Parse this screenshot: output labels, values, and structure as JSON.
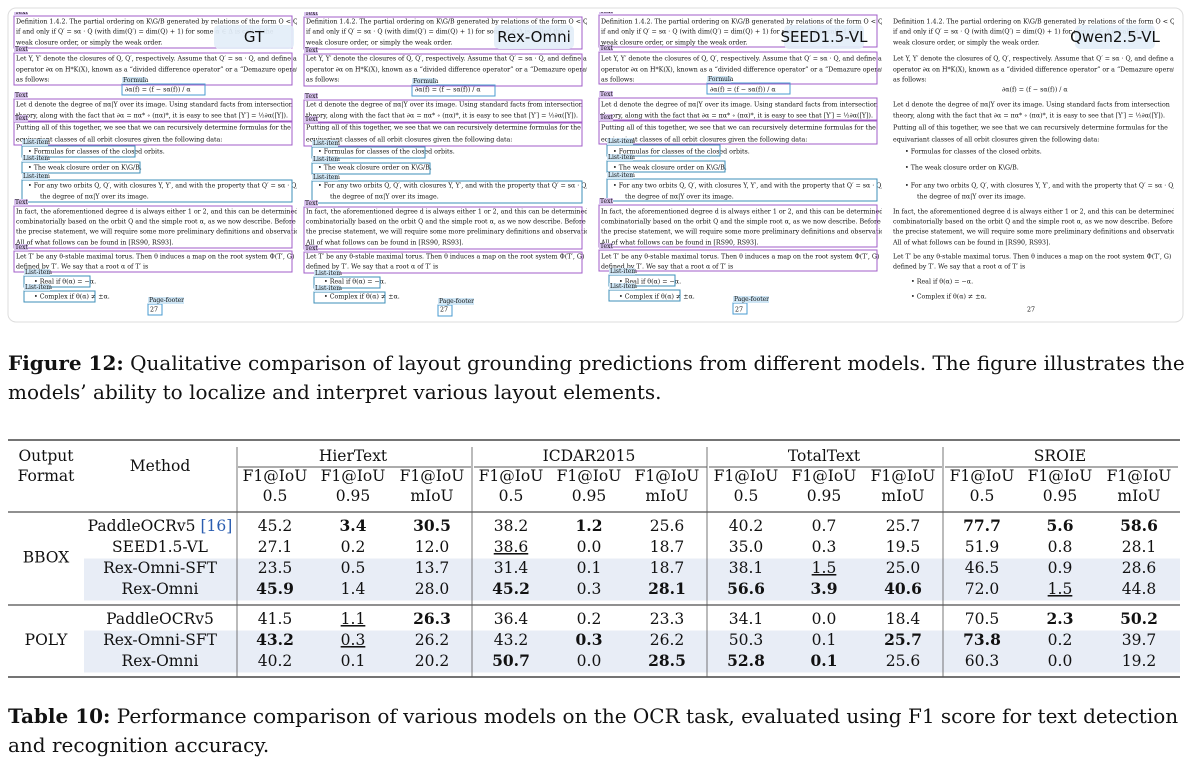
{
  "figure": {
    "panels": [
      "GT",
      "Rex-Omni",
      "SEED1.5-VL",
      "Qwen2.5-VL"
    ],
    "box_labels": [
      "Text",
      "Formula",
      "List-item",
      "Page-footer"
    ],
    "document_lines": [
      "Definition 1.4.2. The partial ordering on K\\G/B generated by relations of the form O < Q′",
      "if and only if Q′ = sα · Q (with dim(Q′) = dim(Q) + 1) for some α ∈ Δ is called the",
      "weak closure order, or simply the weak order.",
      "Let Y, Y′ denote the closures of Q, Q′, respectively. Assume that Q′ = sα · Q, and define an",
      "operator ∂α on H*K(X), known as a “divided difference operator” or a “Demazure operator”",
      "as follows:",
      "∂α(f) = (f − sα(f)) / α",
      "Let d denote the degree of πα|Y over its image. Using standard facts from intersection",
      "theory, along with the fact that ∂α = πα* ∘ (πα)*, it is easy to see that [Y′] = ½∂α([Y]).",
      "Putting all of this together, we see that we can recursively determine formulas for the",
      "equivariant classes of all orbit closures given the following data:",
      "• Formulas for classes of the closed orbits.",
      "• The weak closure order on K\\G/B.",
      "• For any two orbits Q, Q′, with closures Y, Y′, and with the property that Q′ = sα · Q,",
      "the degree of πα|Y over its image.",
      "In fact, the aforementioned degree d is always either 1 or 2, and this can be determined",
      "combinatorially based on the orbit Q and the simple root α, as we now describe. Before giving",
      "the precise statement, we will require some more preliminary definitions and observations.",
      "All of what follows can be found in [RS90, RS93].",
      "Let T′ be any θ-stable maximal torus. Then θ induces a map on the root system Φ(T′, G)",
      "defined by T′. We say that a root α of T′ is",
      "• Real if θ(α) = −α.",
      "• Complex if θ(α) ≠ ±α.",
      "27"
    ],
    "caption_label": "Figure 12:",
    "caption_text": " Qualitative comparison of layout grounding predictions from different models. The figure illustrates the models’ ability to localize and interpret various layout elements."
  },
  "table": {
    "output_format": [
      "Output",
      "Format"
    ],
    "method": "Method",
    "groups": [
      "HierText",
      "ICDAR2015",
      "TotalText",
      "SROIE"
    ],
    "metrics": [
      [
        "F1@IoU",
        "0.5"
      ],
      [
        "F1@IoU",
        "0.95"
      ],
      [
        "F1@IoU",
        "mIoU"
      ]
    ],
    "sections": [
      {
        "format": "BBOX",
        "rows": [
          {
            "method": "PaddleOCRv5",
            "cite": "[16]",
            "values": [
              "45.2",
              "3.4",
              "30.5",
              "38.2",
              "1.2",
              "25.6",
              "40.2",
              "0.7",
              "25.7",
              "77.7",
              "5.6",
              "58.6"
            ],
            "bold": [
              1,
              2,
              4,
              9,
              10,
              11
            ],
            "underline": []
          },
          {
            "method": "SEED1.5-VL",
            "values": [
              "27.1",
              "0.2",
              "12.0",
              "38.6",
              "0.0",
              "18.7",
              "35.0",
              "0.3",
              "19.5",
              "51.9",
              "0.8",
              "28.1"
            ],
            "bold": [],
            "underline": [
              3
            ]
          },
          {
            "method": "Rex-Omni-SFT",
            "values": [
              "23.5",
              "0.5",
              "13.7",
              "31.4",
              "0.1",
              "18.7",
              "38.1",
              "1.5",
              "25.0",
              "46.5",
              "0.9",
              "28.6"
            ],
            "bold": [],
            "underline": [
              7
            ],
            "shaded": true
          },
          {
            "method": "Rex-Omni",
            "values": [
              "45.9",
              "1.4",
              "28.0",
              "45.2",
              "0.3",
              "28.1",
              "56.6",
              "3.9",
              "40.6",
              "72.0",
              "1.5",
              "44.8"
            ],
            "bold": [
              0,
              3,
              5,
              6,
              7,
              8
            ],
            "underline": [
              10
            ],
            "shaded": true
          }
        ]
      },
      {
        "format": "POLY",
        "rows": [
          {
            "method": "PaddleOCRv5",
            "values": [
              "41.5",
              "1.1",
              "26.3",
              "36.4",
              "0.2",
              "23.3",
              "34.1",
              "0.0",
              "18.4",
              "70.5",
              "2.3",
              "50.2"
            ],
            "bold": [
              2,
              10,
              11
            ],
            "underline": [
              1
            ]
          },
          {
            "method": "Rex-Omni-SFT",
            "values": [
              "43.2",
              "0.3",
              "26.2",
              "43.2",
              "0.3",
              "26.2",
              "50.3",
              "0.1",
              "25.7",
              "73.8",
              "0.2",
              "39.7"
            ],
            "bold": [
              0,
              4,
              8,
              9
            ],
            "underline": [
              1
            ],
            "shaded": true
          },
          {
            "method": "Rex-Omni",
            "values": [
              "40.2",
              "0.1",
              "20.2",
              "50.7",
              "0.0",
              "28.5",
              "52.8",
              "0.1",
              "25.6",
              "60.3",
              "0.0",
              "19.2"
            ],
            "bold": [
              3,
              5,
              6,
              7
            ],
            "underline": [],
            "shaded": true
          }
        ]
      }
    ],
    "caption_label": "Table 10:",
    "caption_text": " Performance comparison of various models on the OCR task, evaluated using F1 score for text detection and recognition accuracy."
  }
}
